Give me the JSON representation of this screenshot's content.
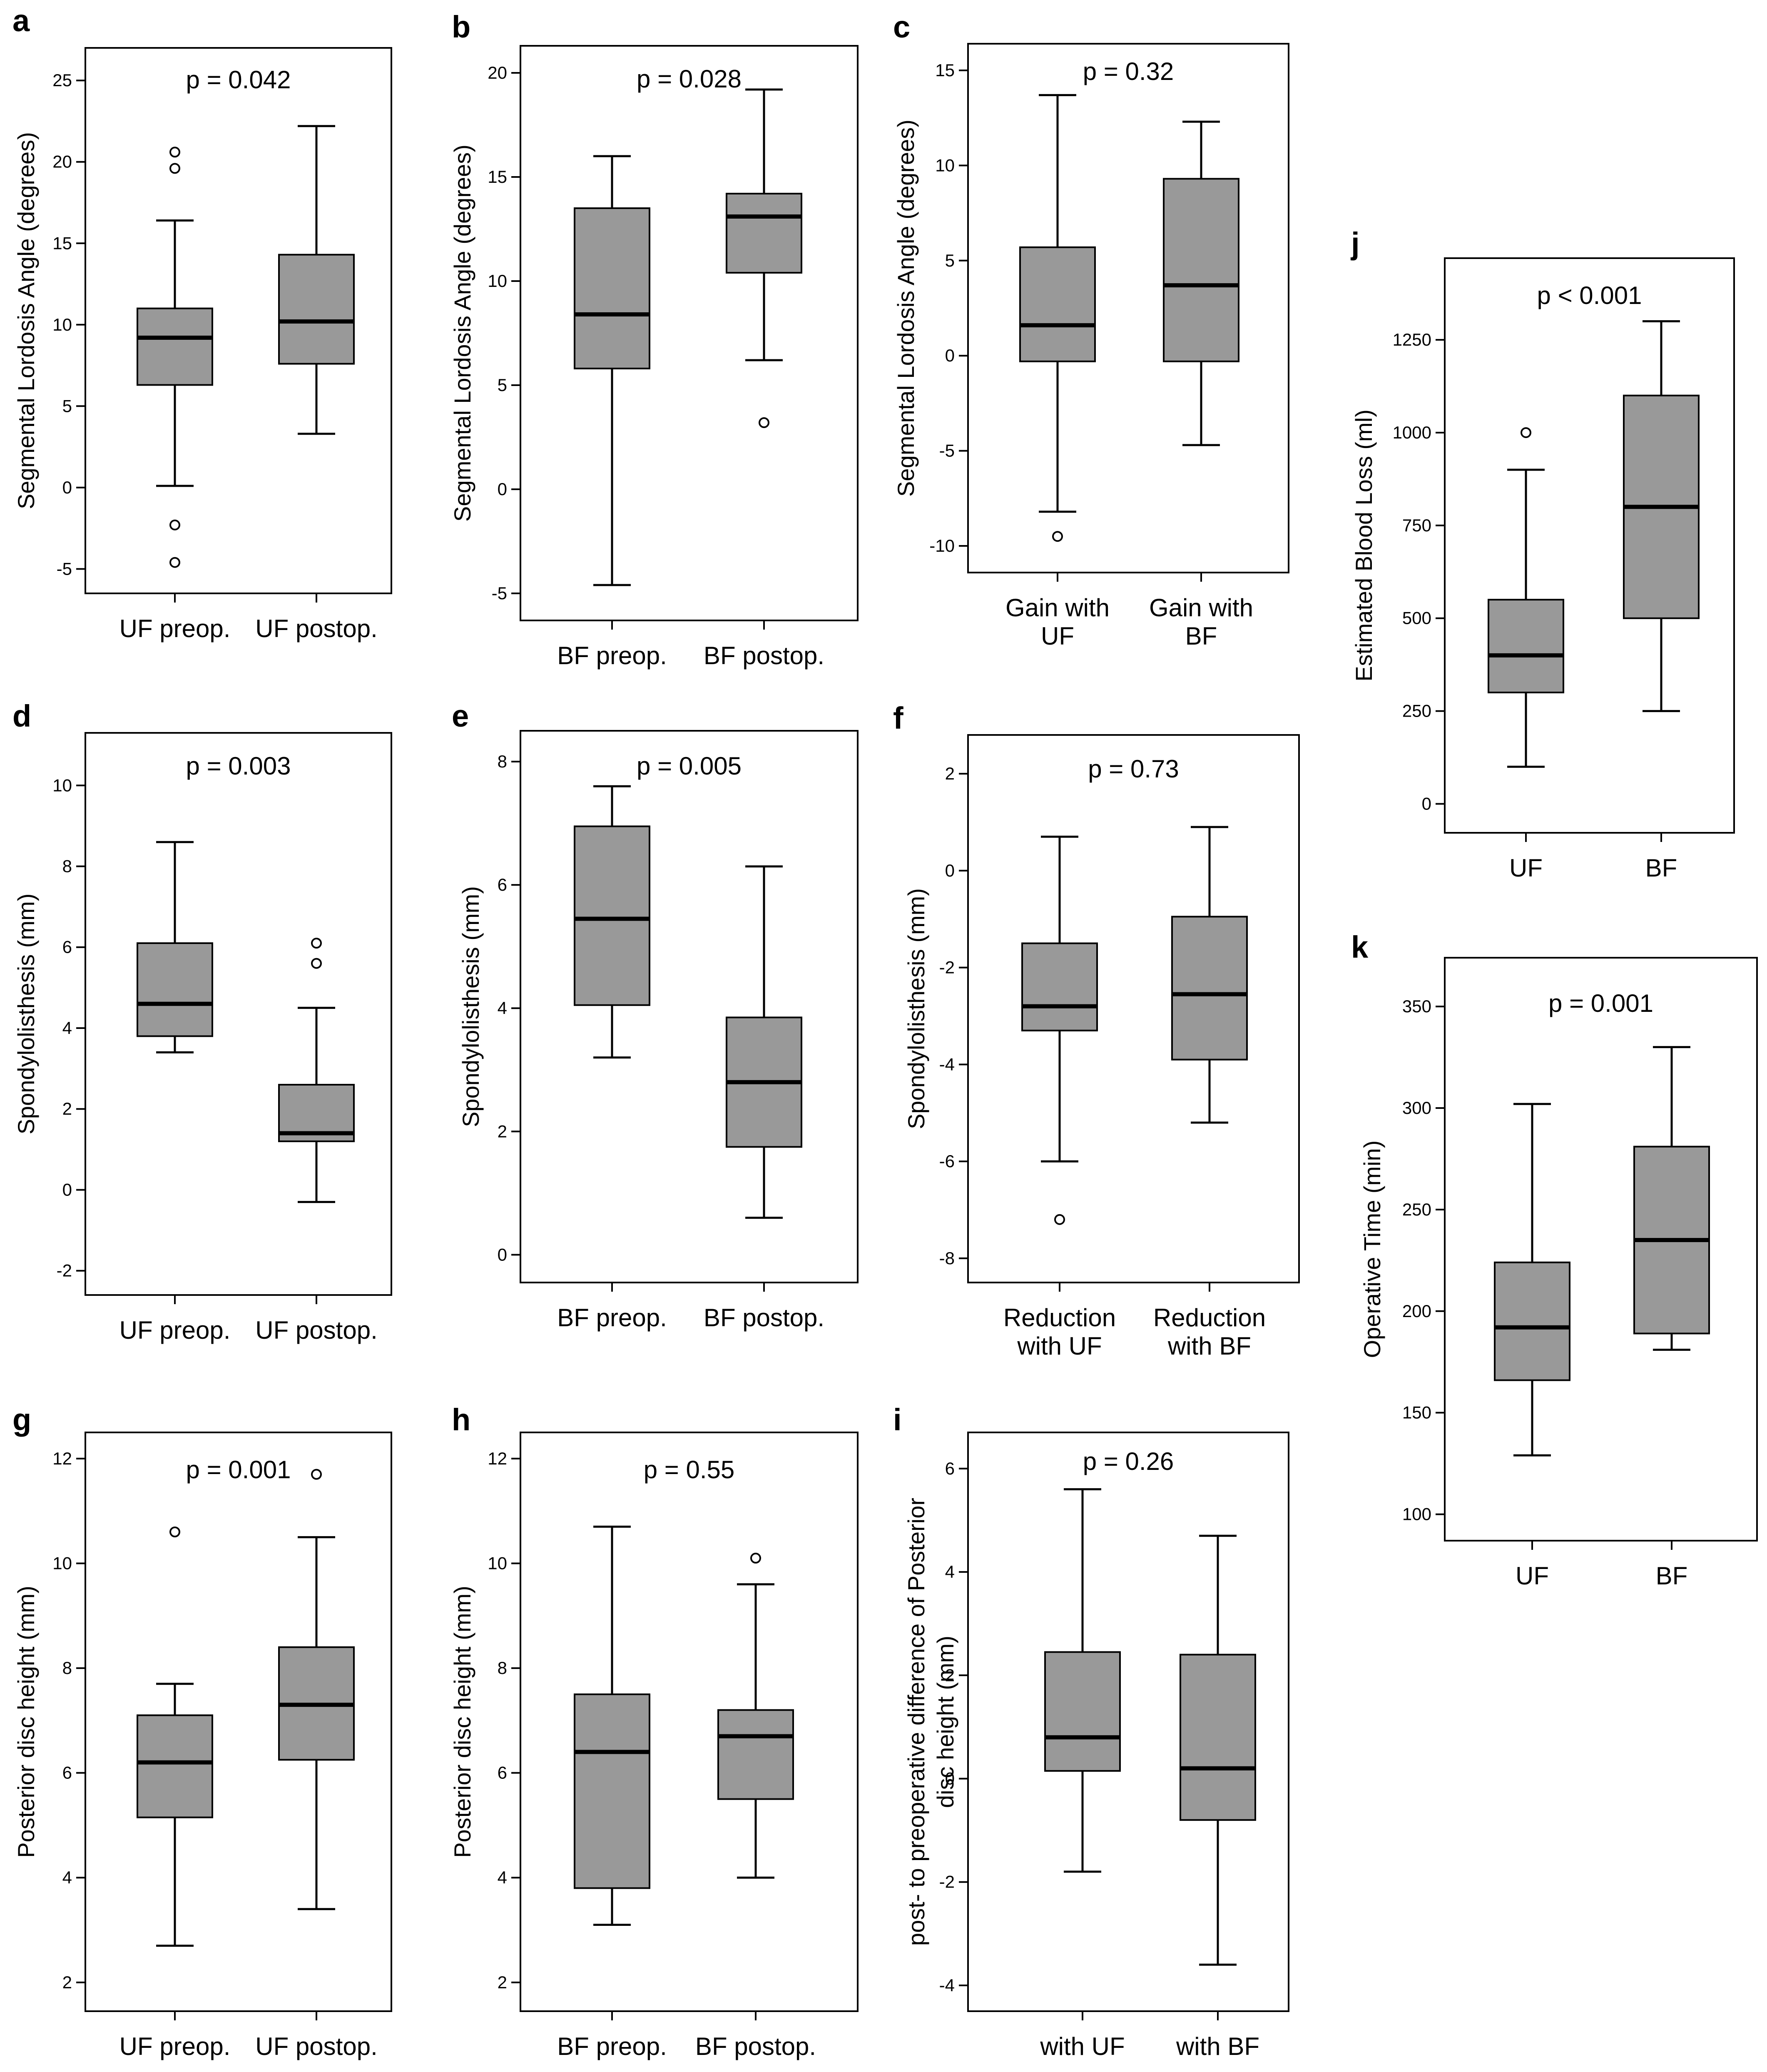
{
  "figure": {
    "box_fill": "#999999"
  },
  "chart_data": [
    {
      "id": "a",
      "panel_label": "a",
      "type": "box",
      "ylabel": "Segmental Lordosis Angle (degrees)",
      "p_value": "p = 0.042",
      "ylim": [
        -6.5,
        27
      ],
      "yticks": [
        -5,
        0,
        5,
        10,
        15,
        20,
        25
      ],
      "ytick_labels": [
        "-5",
        "0",
        "5",
        "10",
        "15",
        "20",
        "25"
      ],
      "groups": [
        {
          "label": [
            "UF preop."
          ],
          "min": 0.1,
          "q1": 6.3,
          "median": 9.2,
          "q3": 11.0,
          "max": 16.4,
          "outliers": [
            20.6,
            19.6,
            -2.3,
            -4.6
          ]
        },
        {
          "label": [
            "UF postop."
          ],
          "min": 3.3,
          "q1": 7.6,
          "median": 10.2,
          "q3": 14.3,
          "max": 22.2,
          "outliers": []
        }
      ]
    },
    {
      "id": "b",
      "panel_label": "b",
      "type": "box",
      "ylabel": "Segmental Lordosis Angle (degrees)",
      "p_value": "p = 0.028",
      "ylim": [
        -6.3,
        21.3
      ],
      "yticks": [
        -5,
        0,
        5,
        10,
        15,
        20
      ],
      "ytick_labels": [
        "-5",
        "0",
        "5",
        "10",
        "15",
        "20"
      ],
      "groups": [
        {
          "label": [
            "BF preop."
          ],
          "min": -4.6,
          "q1": 5.8,
          "median": 8.4,
          "q3": 13.5,
          "max": 16.0,
          "outliers": []
        },
        {
          "label": [
            "BF postop."
          ],
          "min": 6.2,
          "q1": 10.4,
          "median": 13.1,
          "q3": 14.2,
          "max": 19.2,
          "outliers": [
            3.2
          ]
        }
      ]
    },
    {
      "id": "c",
      "panel_label": "c",
      "type": "box",
      "ylabel": "Segmental Lordosis Angle (degrees)",
      "p_value": "p = 0.32",
      "ylim": [
        -11.4,
        16.4
      ],
      "yticks": [
        -10,
        -5,
        0,
        5,
        10,
        15
      ],
      "ytick_labels": [
        "-10",
        "-5",
        "0",
        "5",
        "10",
        "15"
      ],
      "groups": [
        {
          "label": [
            "Gain with",
            "UF"
          ],
          "min": -8.2,
          "q1": -0.3,
          "median": 1.6,
          "q3": 5.7,
          "max": 13.7,
          "outliers": [
            -9.5
          ]
        },
        {
          "label": [
            "Gain with",
            "BF"
          ],
          "min": -4.7,
          "q1": -0.3,
          "median": 3.7,
          "q3": 9.3,
          "max": 12.3,
          "outliers": []
        }
      ]
    },
    {
      "id": "d",
      "panel_label": "d",
      "type": "box",
      "ylabel": "Spondylolisthesis (mm)",
      "p_value": "p = 0.003",
      "ylim": [
        -2.6,
        11.3
      ],
      "yticks": [
        -2,
        0,
        2,
        4,
        6,
        8,
        10
      ],
      "ytick_labels": [
        "-2",
        "0",
        "2",
        "4",
        "6",
        "8",
        "10"
      ],
      "groups": [
        {
          "label": [
            "UF preop."
          ],
          "min": 3.4,
          "q1": 3.8,
          "median": 4.6,
          "q3": 6.1,
          "max": 8.6,
          "outliers": []
        },
        {
          "label": [
            "UF postop."
          ],
          "min": -0.3,
          "q1": 1.2,
          "median": 1.4,
          "q3": 2.6,
          "max": 4.5,
          "outliers": [
            6.1,
            5.6
          ]
        }
      ]
    },
    {
      "id": "e",
      "panel_label": "e",
      "type": "box",
      "ylabel": "Spondylolisthesis (mm)",
      "p_value": "p = 0.005",
      "ylim": [
        -0.45,
        8.5
      ],
      "yticks": [
        0,
        2,
        4,
        6,
        8
      ],
      "ytick_labels": [
        "0",
        "2",
        "4",
        "6",
        "8"
      ],
      "groups": [
        {
          "label": [
            "BF preop."
          ],
          "min": 3.2,
          "q1": 4.05,
          "median": 5.45,
          "q3": 6.95,
          "max": 7.6,
          "outliers": []
        },
        {
          "label": [
            "BF postop."
          ],
          "min": 0.6,
          "q1": 1.75,
          "median": 2.8,
          "q3": 3.85,
          "max": 6.3,
          "outliers": []
        }
      ]
    },
    {
      "id": "f",
      "panel_label": "f",
      "type": "box",
      "ylabel": "Spondylolisthesis (mm)",
      "p_value": "p = 0.73",
      "ylim": [
        -8.5,
        2.8
      ],
      "yticks": [
        -8,
        -6,
        -4,
        -2,
        0,
        2
      ],
      "ytick_labels": [
        "-8",
        "-6",
        "-4",
        "-2",
        "0",
        "2"
      ],
      "groups": [
        {
          "label": [
            "Reduction",
            "with UF"
          ],
          "min": -6.0,
          "q1": -3.3,
          "median": -2.8,
          "q3": -1.5,
          "max": 0.7,
          "outliers": [
            -7.2
          ]
        },
        {
          "label": [
            "Reduction",
            "with BF"
          ],
          "min": -5.2,
          "q1": -3.9,
          "median": -2.55,
          "q3": -0.95,
          "max": 0.9,
          "outliers": []
        }
      ]
    },
    {
      "id": "g",
      "panel_label": "g",
      "type": "box",
      "ylabel": "Posterior disc height (mm)",
      "p_value": "p = 0.001",
      "ylim": [
        1.45,
        12.5
      ],
      "yticks": [
        2,
        4,
        6,
        8,
        10,
        12
      ],
      "ytick_labels": [
        "2",
        "4",
        "6",
        "8",
        "10",
        "12"
      ],
      "groups": [
        {
          "label": [
            "UF preop."
          ],
          "min": 2.7,
          "q1": 5.15,
          "median": 6.2,
          "q3": 7.1,
          "max": 7.7,
          "outliers": [
            10.6
          ]
        },
        {
          "label": [
            "UF postop."
          ],
          "min": 3.4,
          "q1": 6.25,
          "median": 7.3,
          "q3": 8.4,
          "max": 10.5,
          "outliers": [
            11.7
          ]
        }
      ]
    },
    {
      "id": "h",
      "panel_label": "h",
      "type": "box",
      "ylabel": "Posterior disc height (mm)",
      "p_value": "p = 0.55",
      "ylim": [
        1.45,
        12.5
      ],
      "yticks": [
        2,
        4,
        6,
        8,
        10,
        12
      ],
      "ytick_labels": [
        "2",
        "4",
        "6",
        "8",
        "10",
        "12"
      ],
      "groups": [
        {
          "label": [
            "BF preop."
          ],
          "min": 3.1,
          "q1": 3.8,
          "median": 6.4,
          "q3": 7.5,
          "max": 10.7,
          "outliers": []
        },
        {
          "label": [
            "BF postop."
          ],
          "min": 4.0,
          "q1": 5.5,
          "median": 6.7,
          "q3": 7.2,
          "max": 9.6,
          "outliers": [
            10.1
          ]
        }
      ]
    },
    {
      "id": "i",
      "panel_label": "i",
      "type": "box",
      "ylabel": "post- to preoperative difference of Posterior disc height (mm)",
      "ylabel_lines": [
        "post- to preoperative difference of Posterior",
        "disc height (mm)"
      ],
      "p_value": "p = 0.26",
      "ylim": [
        -4.5,
        6.7
      ],
      "yticks": [
        -4,
        -2,
        0,
        2,
        4,
        6
      ],
      "ytick_labels": [
        "-4",
        "-2",
        "0",
        "2",
        "4",
        "6"
      ],
      "groups": [
        {
          "label": [
            "with UF"
          ],
          "min": -1.8,
          "q1": 0.15,
          "median": 0.8,
          "q3": 2.45,
          "max": 5.6,
          "outliers": []
        },
        {
          "label": [
            "with BF"
          ],
          "min": -3.6,
          "q1": -0.8,
          "median": 0.2,
          "q3": 2.4,
          "max": 4.7,
          "outliers": []
        }
      ]
    },
    {
      "id": "j",
      "panel_label": "j",
      "type": "box",
      "ylabel": "Estimated Blood Loss (ml)",
      "p_value": "p < 0.001",
      "ylim": [
        -78,
        1470
      ],
      "yticks": [
        0,
        250,
        500,
        750,
        1000,
        1250
      ],
      "ytick_labels": [
        "0",
        "250",
        "500",
        "750",
        "1000",
        "1250"
      ],
      "groups": [
        {
          "label": [
            "UF"
          ],
          "min": 100,
          "q1": 300,
          "median": 400,
          "q3": 550,
          "max": 900,
          "outliers": [
            1000
          ]
        },
        {
          "label": [
            "BF"
          ],
          "min": 250,
          "q1": 500,
          "median": 800,
          "q3": 1100,
          "max": 1300,
          "outliers": []
        }
      ]
    },
    {
      "id": "k",
      "panel_label": "k",
      "type": "box",
      "ylabel": "Operative Time (min)",
      "p_value": "p = 0.001",
      "ylim": [
        87,
        374
      ],
      "yticks": [
        100,
        150,
        200,
        250,
        300,
        350
      ],
      "ytick_labels": [
        "100",
        "150",
        "200",
        "250",
        "300",
        "350"
      ],
      "groups": [
        {
          "label": [
            "UF"
          ],
          "min": 129,
          "q1": 166,
          "median": 192,
          "q3": 224,
          "max": 302,
          "outliers": []
        },
        {
          "label": [
            "BF"
          ],
          "min": 181,
          "q1": 189,
          "median": 235,
          "q3": 281,
          "max": 330,
          "outliers": []
        }
      ]
    }
  ]
}
